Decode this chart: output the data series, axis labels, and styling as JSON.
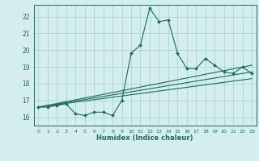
{
  "xlabel": "Humidex (Indice chaleur)",
  "bg_color": "#d4eeee",
  "grid_color": "#aad4d4",
  "line_color": "#1a6b5a",
  "xlim": [
    -0.5,
    23.5
  ],
  "ylim": [
    15.5,
    22.7
  ],
  "xticks": [
    0,
    1,
    2,
    3,
    4,
    5,
    6,
    7,
    8,
    9,
    10,
    11,
    12,
    13,
    14,
    15,
    16,
    17,
    18,
    19,
    20,
    21,
    22,
    23
  ],
  "yticks": [
    16,
    17,
    18,
    19,
    20,
    21,
    22
  ],
  "main_line": {
    "x": [
      0,
      1,
      2,
      3,
      4,
      5,
      6,
      7,
      8,
      9,
      10,
      11,
      12,
      13,
      14,
      15,
      16,
      17,
      18,
      19,
      20,
      21,
      22,
      23
    ],
    "y": [
      16.6,
      16.6,
      16.7,
      16.8,
      16.2,
      16.1,
      16.3,
      16.3,
      16.1,
      17.0,
      19.8,
      20.3,
      22.5,
      21.7,
      21.8,
      19.8,
      18.9,
      18.9,
      19.5,
      19.1,
      18.7,
      18.6,
      19.0,
      18.6
    ]
  },
  "reg_lines": [
    {
      "x": [
        0,
        23
      ],
      "y": [
        16.6,
        18.3
      ]
    },
    {
      "x": [
        0,
        23
      ],
      "y": [
        16.6,
        18.7
      ]
    },
    {
      "x": [
        0,
        23
      ],
      "y": [
        16.6,
        19.1
      ]
    }
  ]
}
